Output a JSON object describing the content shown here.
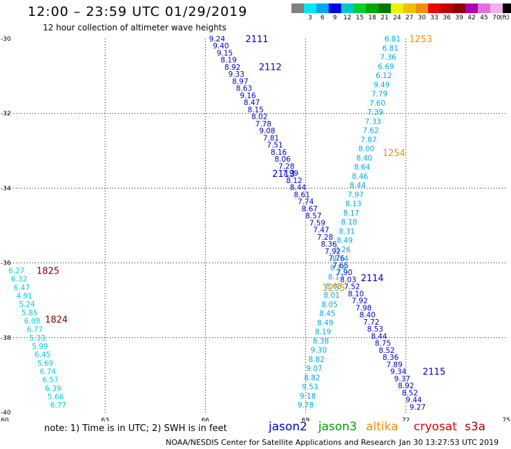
{
  "header": {
    "title": "12:00 – 23:59 UTC 01/29/2019",
    "subtitle": "12 hour collection of altimeter wave heights"
  },
  "colorbar": {
    "unit": "(ft)",
    "cells": [
      {
        "color": "#808080",
        "label": ""
      },
      {
        "color": "#00e8f0",
        "label": "3"
      },
      {
        "color": "#00a8f0",
        "label": "6"
      },
      {
        "color": "#0000e8",
        "label": "9"
      },
      {
        "color": "#00c8c8",
        "label": "12"
      },
      {
        "color": "#00d030",
        "label": "15"
      },
      {
        "color": "#00a800",
        "label": "18"
      },
      {
        "color": "#007800",
        "label": "21"
      },
      {
        "color": "#f0f000",
        "label": "24"
      },
      {
        "color": "#f0c000",
        "label": "27"
      },
      {
        "color": "#f09000",
        "label": "30"
      },
      {
        "color": "#f00000",
        "label": "33"
      },
      {
        "color": "#c00000",
        "label": "36"
      },
      {
        "color": "#900000",
        "label": "39"
      },
      {
        "color": "#b000b0",
        "label": "42"
      },
      {
        "color": "#e070e0",
        "label": "45"
      },
      {
        "color": "#f0b0f0",
        "label": "70"
      },
      {
        "color": "#000000",
        "label": ""
      }
    ]
  },
  "chart_data": {
    "type": "scatter",
    "title": "12:00 – 23:59 UTC 01/29/2019",
    "subtitle": "12 hour collection of altimeter wave heights",
    "xlim": [
      60,
      75
    ],
    "ylim": [
      -40,
      -30
    ],
    "x_ticks": [
      60,
      63,
      66,
      69,
      72,
      75
    ],
    "y_ticks": [
      -30,
      -32,
      -34,
      -36,
      -38,
      -40
    ],
    "grid": true,
    "tracks": [
      {
        "satellite": "jason2",
        "pass_times": [
          "2111",
          "2112",
          "2113",
          "2114",
          "2115"
        ],
        "color": "#0000c8",
        "lon_start": 66.35,
        "lat_start": -30.0,
        "lon_end": 72.35,
        "lat_end": -39.85,
        "values": [
          9.24,
          9.4,
          9.15,
          8.19,
          8.92,
          9.33,
          8.97,
          8.63,
          9.16,
          8.47,
          8.15,
          8.02,
          7.78,
          9.08,
          7.81,
          7.51,
          8.16,
          8.06,
          7.28,
          7.99,
          8.12,
          8.44,
          8.61,
          7.74,
          8.67,
          8.57,
          7.59,
          7.47,
          7.28,
          8.36,
          7.92,
          7.76,
          7.65,
          7.9,
          8.03,
          7.52,
          8.1,
          7.92,
          7.98,
          8.4,
          7.72,
          8.53,
          8.44,
          8.75,
          8.52,
          8.36,
          7.89,
          9.34,
          9.37,
          8.92,
          8.52,
          9.44,
          9.27
        ]
      },
      {
        "satellite": "altika",
        "pass_times": [
          "1253",
          "1254",
          "1255"
        ],
        "color": "#00a8e8",
        "lon_start": 71.6,
        "lat_start": -30.0,
        "lon_end": 69.0,
        "lat_end": -39.8,
        "values": [
          6.81,
          6.81,
          7.36,
          6.69,
          6.12,
          9.49,
          7.79,
          7.6,
          7.39,
          7.33,
          7.62,
          7.87,
          8.0,
          8.4,
          8.64,
          8.46,
          8.44,
          7.97,
          8.13,
          8.17,
          8.18,
          8.31,
          8.49,
          8.26,
          8.14,
          8.14,
          8.17,
          8.08,
          8.01,
          8.05,
          8.45,
          8.49,
          8.19,
          8.38,
          9.3,
          8.82,
          9.07,
          8.82,
          9.53,
          9.18,
          9.78
        ]
      },
      {
        "satellite": "cryosat",
        "pass_times": [
          "1825",
          "1824"
        ],
        "color": "#00c8e8",
        "lon_start": 60.35,
        "lat_start": -36.2,
        "lon_end": 61.6,
        "lat_end": -39.8,
        "values": [
          6.27,
          6.32,
          6.47,
          4.91,
          5.24,
          5.85,
          6.08,
          6.77,
          5.33,
          5.99,
          6.45,
          5.69,
          6.74,
          6.57,
          6.39,
          5.66,
          6.77
        ]
      }
    ],
    "pass_labels": [
      {
        "text": "2111",
        "lon": 67.2,
        "lat": -30.0,
        "color": "#0000c8"
      },
      {
        "text": "2112",
        "lon": 67.6,
        "lat": -30.75,
        "color": "#0000c8"
      },
      {
        "text": "2113",
        "lon": 68.0,
        "lat": -33.6,
        "color": "#0000c8"
      },
      {
        "text": "2114",
        "lon": 70.65,
        "lat": -36.4,
        "color": "#0000c8"
      },
      {
        "text": "2115",
        "lon": 72.5,
        "lat": -38.9,
        "color": "#0000c8"
      },
      {
        "text": "1253",
        "lon": 72.1,
        "lat": -30.0,
        "color": "#f09000"
      },
      {
        "text": "1254",
        "lon": 71.3,
        "lat": -33.05,
        "color": "#f09000"
      },
      {
        "text": "1255",
        "lon": 69.5,
        "lat": -36.65,
        "color": "#f09000"
      },
      {
        "text": "1825",
        "lon": 60.95,
        "lat": -36.2,
        "color": "#800000"
      },
      {
        "text": "1824",
        "lon": 61.2,
        "lat": -37.5,
        "color": "#800000"
      }
    ]
  },
  "legend": {
    "items": [
      {
        "name": "jason2",
        "color": "#0000c8"
      },
      {
        "name": "jason3",
        "color": "#00a000"
      },
      {
        "name": "altika",
        "color": "#f09000"
      },
      {
        "name": "cryosat",
        "color": "#e00000"
      },
      {
        "name": "s3a",
        "color": "#a00000"
      }
    ]
  },
  "footer": {
    "note": "note: 1) Time is in UTC; 2) SWH is in feet",
    "credit": "NOAA/NESDIS Center for Satellite Applications and Research",
    "timestamp": "Jan 30 13:27:53 UTC 2019"
  }
}
